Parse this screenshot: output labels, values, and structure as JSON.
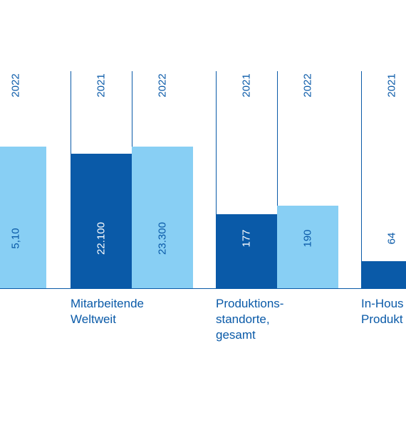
{
  "chart_data": {
    "type": "bar",
    "categories": [
      {
        "lines": [
          "Mitarbeitende",
          "Weltweit"
        ]
      },
      {
        "lines": [
          "Produktions-",
          "standorte,",
          "gesamt"
        ]
      },
      {
        "lines": [
          "In-Hous",
          "Produkt"
        ]
      }
    ],
    "years": [
      "2021",
      "2022"
    ],
    "clipped_left_group": {
      "year_label": "2022",
      "value": 5.1,
      "value_label": "5,10"
    },
    "groups": [
      {
        "category_index": 0,
        "bars": [
          {
            "year": "2021",
            "value": 22100,
            "label": "22.100"
          },
          {
            "year": "2022",
            "value": 23300,
            "label": "23.300"
          }
        ]
      },
      {
        "category_index": 1,
        "bars": [
          {
            "year": "2021",
            "value": 177,
            "label": "177"
          },
          {
            "year": "2022",
            "value": 190,
            "label": "190"
          }
        ]
      },
      {
        "category_index": 2,
        "bars": [
          {
            "year": "2021",
            "value": 64,
            "label": "64"
          }
        ]
      }
    ],
    "colors": {
      "2021": "#0a5aa8",
      "2022": "#88cff4",
      "axis": "#0a5aa8",
      "text_dark": "#0a5aa8",
      "text_on_dark": "#ffffff"
    },
    "grid": false,
    "legend": "none"
  }
}
